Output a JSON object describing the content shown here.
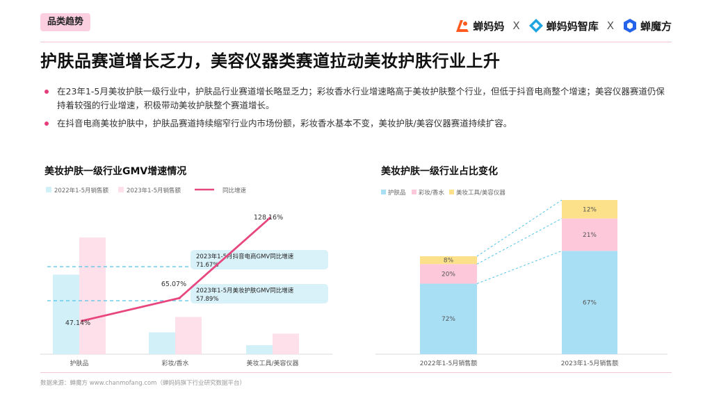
{
  "header": {
    "tag": "品类趋势",
    "logos": [
      "蝉妈妈",
      "蝉妈妈智库",
      "蝉魔方"
    ],
    "separator": "X",
    "title": "护肤品赛道增长乏力，美容仪器类赛道拉动美妆护肤行业上升"
  },
  "bullets": [
    "在23年1-5月美妆护肤一级行业中，护肤品行业赛道增长略显乏力；彩妆香水行业增速略高于美妆护肤整个行业，但低于抖音电商整个增速；美容仪器赛道仍保持着较强的行业增速，积极带动美妆护肤整个赛道增长。",
    "在抖音电商美妆护肤中，护肤品赛道持续缩窄行业内市场份额，彩妆香水基本不变，美妆护肤/美容仪器赛道持续扩容。"
  ],
  "footer": "数据来源：蝉魔方 www.chanmofang.com（蝉妈妈旗下行业研究数据平台）",
  "colors": {
    "accent": "#e63c7c",
    "bar2022": "#d2f0f8",
    "bar2023": "#fde0ea",
    "growth_line": "#e8467e",
    "ref_line": "#4fc3e6",
    "callout_bg": "#d7f0f8",
    "skin": "#a9dff5",
    "makeup": "#fcc8da",
    "device": "#fce08a"
  },
  "chart_data": [
    {
      "type": "bar",
      "title": "美妆护肤一级行业GMV增速情况",
      "categories": [
        "护肤品",
        "彩妆/香水",
        "美妆工具/美容仪器"
      ],
      "series": [
        {
          "name": "2022年1-5月销售额",
          "values": [
            62,
            17,
            7
          ]
        },
        {
          "name": "2023年1-5月销售额",
          "values": [
            91,
            29,
            16
          ]
        }
      ],
      "line_series": {
        "name": "同比增速",
        "values": [
          47.14,
          65.07,
          128.16
        ],
        "labels": [
          "47.14%",
          "65.07%",
          "128.16%"
        ]
      },
      "reference_lines": [
        {
          "label": "2023年1-5月抖音电商GMV同比增速",
          "value": 71.67,
          "value_label": "71.67%"
        },
        {
          "label": "2023年1-5月美妆护肤GMV同比增速",
          "value": 57.89,
          "value_label": "57.89%"
        }
      ]
    },
    {
      "type": "bar",
      "stacked": true,
      "title": "美妆护肤一级行业占比变化",
      "categories": [
        "2022年1-5月销售额",
        "2023年1-5月销售额"
      ],
      "series": [
        {
          "name": "护肤品",
          "values": [
            72,
            67
          ],
          "labels": [
            "72%",
            "67%"
          ]
        },
        {
          "name": "彩妆/香水",
          "values": [
            20,
            21
          ],
          "labels": [
            "20%",
            "21%"
          ]
        },
        {
          "name": "美妆工具/美容仪器",
          "values": [
            8,
            12
          ],
          "labels": [
            "8%",
            "12%"
          ]
        }
      ]
    }
  ]
}
